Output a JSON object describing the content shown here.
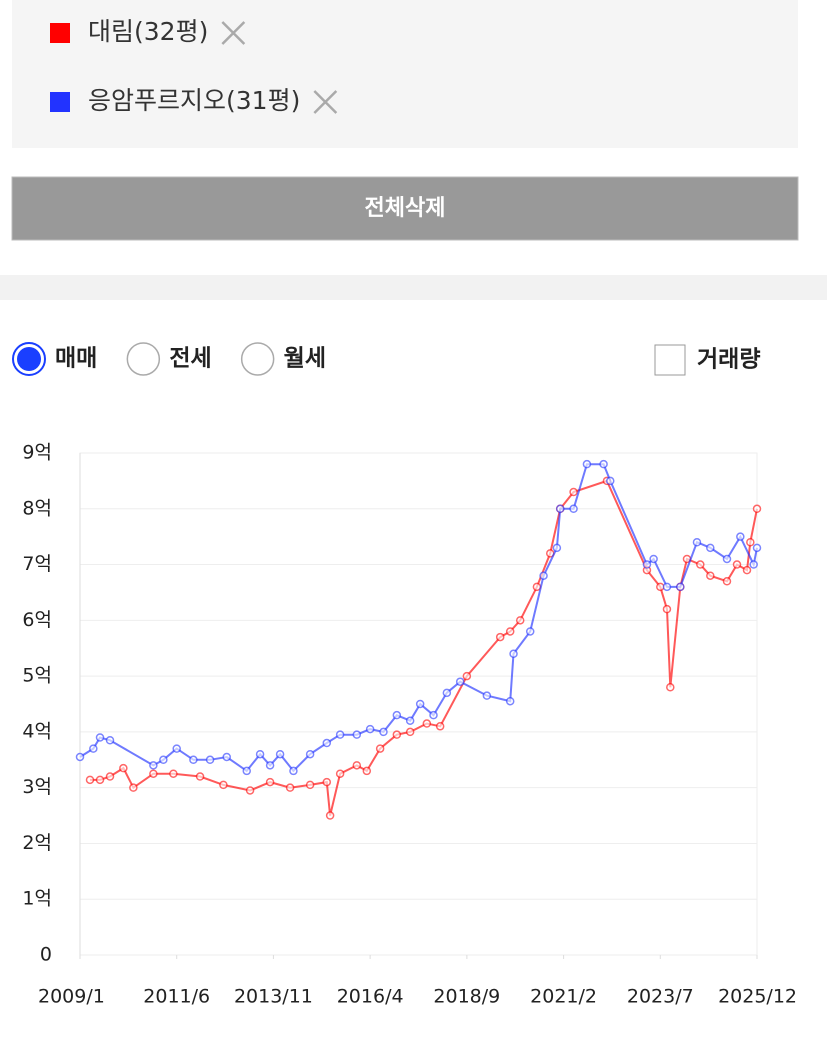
{
  "delete_all_button": "전체삭제",
  "trade_types": {
    "options": [
      "매매",
      "전세",
      "월세"
    ],
    "selected": 0
  },
  "volume_toggle": {
    "label": "거래량",
    "checked": false
  },
  "chart_data": {
    "type": "line",
    "xlim": [
      "2009/1",
      "2025/12"
    ],
    "xticks": [
      "2009/1",
      "2011/6",
      "2013/11",
      "2016/4",
      "2018/9",
      "2021/2",
      "2023/7",
      "2025/12"
    ],
    "ylim": [
      0,
      9
    ],
    "yticks": [
      0,
      {
        "value": 1,
        "label": "1억"
      },
      {
        "value": 2,
        "label": "2억"
      },
      {
        "value": 3,
        "label": "3억"
      },
      {
        "value": 4,
        "label": "4억"
      },
      {
        "value": 5,
        "label": "5억"
      },
      {
        "value": 6,
        "label": "6억"
      },
      {
        "value": 7,
        "label": "7억"
      },
      {
        "value": 8,
        "label": "8억"
      },
      {
        "value": 9,
        "label": "9억"
      }
    ],
    "grid": true,
    "series": [
      {
        "name": "대림(32평)",
        "color": "#ff0000",
        "x": [
          "2009/4",
          "2009/7",
          "2009/10",
          "2010/2",
          "2010/5",
          "2010/11",
          "2011/5",
          "2012/1",
          "2012/8",
          "2013/4",
          "2013/10",
          "2014/4",
          "2014/10",
          "2015/3",
          "2015/4",
          "2015/7",
          "2015/12",
          "2016/3",
          "2016/7",
          "2016/12",
          "2017/4",
          "2017/9",
          "2018/1",
          "2018/9",
          "2019/7",
          "2019/10",
          "2020/1",
          "2020/6",
          "2020/10",
          "2021/1",
          "2021/5",
          "2022/3",
          "2023/3",
          "2023/7",
          "2023/9",
          "2023/10",
          "2024/1",
          "2024/3",
          "2024/7",
          "2024/10",
          "2025/3",
          "2025/6",
          "2025/9",
          "2025/10",
          "2025/12"
        ],
        "values": [
          3.14,
          3.14,
          3.2,
          3.35,
          3.0,
          3.25,
          3.25,
          3.2,
          3.05,
          2.95,
          3.1,
          3.0,
          3.05,
          3.1,
          2.5,
          3.25,
          3.4,
          3.3,
          3.7,
          3.95,
          4.0,
          4.15,
          4.1,
          5.0,
          5.7,
          5.8,
          6.0,
          6.6,
          7.2,
          8.0,
          8.3,
          8.5,
          6.9,
          6.6,
          6.2,
          4.8,
          6.6,
          7.1,
          7.0,
          6.8,
          6.7,
          7.0,
          6.9,
          7.4,
          8.0
        ]
      },
      {
        "name": "응암푸르지오(31평)",
        "color": "#2233ff",
        "x": [
          "2009/1",
          "2009/5",
          "2009/7",
          "2009/10",
          "2010/11",
          "2011/2",
          "2011/6",
          "2011/11",
          "2012/4",
          "2012/9",
          "2013/3",
          "2013/7",
          "2013/10",
          "2014/1",
          "2014/5",
          "2014/10",
          "2015/3",
          "2015/7",
          "2015/12",
          "2016/4",
          "2016/8",
          "2016/12",
          "2017/4",
          "2017/7",
          "2017/11",
          "2018/3",
          "2018/7",
          "2019/3",
          "2019/10",
          "2019/11",
          "2020/4",
          "2020/8",
          "2020/12",
          "2021/1",
          "2021/5",
          "2021/9",
          "2022/2",
          "2022/4",
          "2023/3",
          "2023/5",
          "2023/9",
          "2024/1",
          "2024/6",
          "2024/10",
          "2025/3",
          "2025/7",
          "2025/11",
          "2025/12"
        ],
        "values": [
          3.55,
          3.7,
          3.9,
          3.85,
          3.4,
          3.5,
          3.7,
          3.5,
          3.5,
          3.55,
          3.3,
          3.6,
          3.4,
          3.6,
          3.3,
          3.6,
          3.8,
          3.95,
          3.95,
          4.05,
          4.0,
          4.3,
          4.2,
          4.5,
          4.3,
          4.7,
          4.9,
          4.65,
          4.55,
          5.4,
          5.8,
          6.8,
          7.3,
          8.0,
          8.0,
          8.8,
          8.8,
          8.5,
          7.0,
          7.1,
          6.6,
          6.6,
          7.4,
          7.3,
          7.1,
          7.5,
          7.0,
          7.3
        ]
      }
    ]
  }
}
